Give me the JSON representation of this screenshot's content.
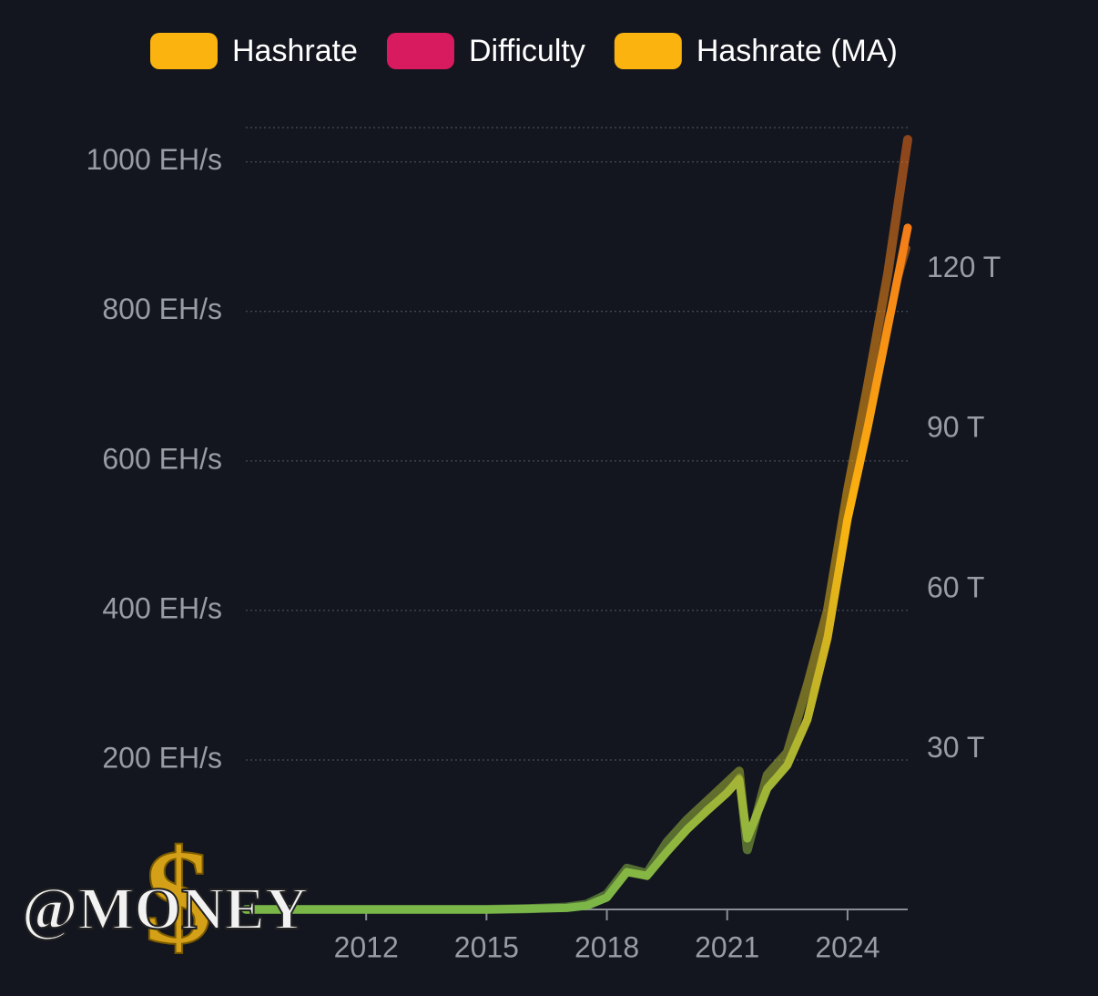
{
  "chart_data": {
    "type": "line",
    "x": [
      2009,
      2012,
      2015,
      2016,
      2017,
      2017.5,
      2018,
      2018.5,
      2019,
      2019.5,
      2020,
      2020.5,
      2021,
      2021.3,
      2021.5,
      2022,
      2022.5,
      2023,
      2023.5,
      2024,
      2024.5,
      2025,
      2025.5
    ],
    "series": [
      {
        "name": "Hashrate",
        "color": "#fbb30f",
        "values": [
          0,
          0,
          0,
          1,
          3,
          7,
          20,
          55,
          48,
          90,
          120,
          145,
          170,
          185,
          80,
          180,
          210,
          300,
          400,
          560,
          700,
          850,
          1030
        ]
      },
      {
        "name": "Difficulty",
        "color": "#d81b5e",
        "axis": "y2",
        "values": [
          0,
          0,
          0,
          0.2,
          0.3,
          0.7,
          2.3,
          7,
          6,
          11,
          15,
          19,
          22,
          25,
          14,
          23,
          27,
          36,
          52,
          74,
          91,
          111,
          124
        ]
      },
      {
        "name": "Hashrate (MA)",
        "color": "#fbb30f",
        "values": [
          0,
          0,
          0,
          1,
          2,
          5,
          16,
          50,
          45,
          77,
          107,
          132,
          156,
          174,
          95,
          162,
          193,
          254,
          363,
          522,
          644,
          778,
          912
        ]
      }
    ],
    "line_colors": [
      "#7ab648",
      "#fbb30f",
      "#f26a1b"
    ],
    "xlim": [
      2009,
      2025.5
    ],
    "xticks": [
      2012,
      2015,
      2018,
      2021,
      2024
    ],
    "ylim": [
      0,
      1046
    ],
    "yticks": [
      {
        "value": 200,
        "label": "200 EH/s"
      },
      {
        "value": 400,
        "label": "400 EH/s"
      },
      {
        "value": 600,
        "label": "600 EH/s"
      },
      {
        "value": 800,
        "label": "800 EH/s"
      },
      {
        "value": 1000,
        "label": "1000 EH/s"
      }
    ],
    "y2lim": [
      0,
      146.6
    ],
    "y2ticks": [
      {
        "value": 30,
        "label": "30 T"
      },
      {
        "value": 60,
        "label": "60 T"
      },
      {
        "value": 90,
        "label": "90 T"
      },
      {
        "value": 120,
        "label": "120 T"
      }
    ],
    "grid": true,
    "watermark": "@MONEY",
    "watermark_symbol": "$"
  }
}
